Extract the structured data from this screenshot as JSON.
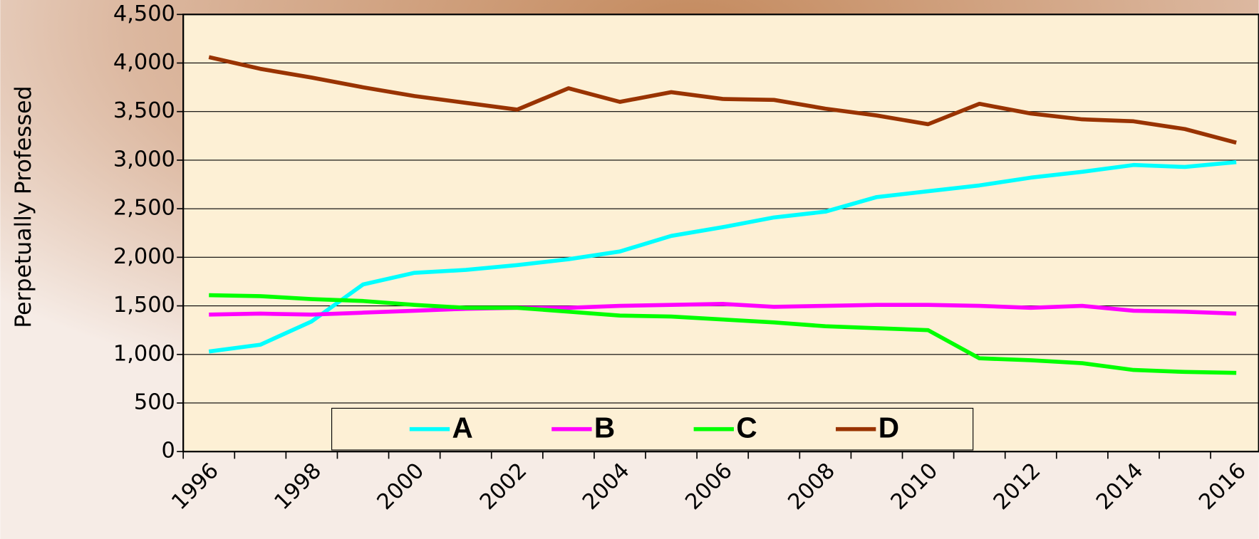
{
  "chart_data": {
    "type": "line",
    "y_label": "Perpetually Professed",
    "categories": [
      "1996",
      null,
      "1998",
      null,
      "2000",
      null,
      "2002",
      null,
      "2004",
      null,
      "2006",
      null,
      "2008",
      null,
      "2010",
      null,
      "2012",
      null,
      "2014",
      null,
      "2016"
    ],
    "series": [
      {
        "name": "A",
        "color": "#00ffff",
        "values": [
          1030,
          1100,
          1340,
          1720,
          1840,
          1870,
          1920,
          1980,
          2060,
          2220,
          2310,
          2410,
          2470,
          2620,
          2680,
          2740,
          2820,
          2880,
          2950,
          2930,
          2980
        ]
      },
      {
        "name": "B",
        "color": "#ff00ff",
        "values": [
          1410,
          1420,
          1410,
          1430,
          1450,
          1470,
          1480,
          1480,
          1500,
          1510,
          1520,
          1490,
          1500,
          1510,
          1510,
          1500,
          1480,
          1500,
          1450,
          1440,
          1420
        ]
      },
      {
        "name": "C",
        "color": "#00ff00",
        "values": [
          1610,
          1600,
          1570,
          1550,
          1510,
          1480,
          1480,
          1440,
          1400,
          1390,
          1360,
          1330,
          1290,
          1270,
          1250,
          960,
          940,
          910,
          840,
          820,
          810
        ]
      },
      {
        "name": "D",
        "color": "#993300",
        "values": [
          4060,
          3940,
          3850,
          3750,
          3660,
          3590,
          3520,
          3740,
          3600,
          3700,
          3630,
          3620,
          3530,
          3460,
          3370,
          3580,
          3480,
          3420,
          3400,
          3320,
          3180
        ]
      }
    ],
    "ylim": [
      0,
      4500
    ],
    "yticks": [
      0,
      500,
      {
        "value": 1000,
        "label": "1,000"
      },
      {
        "value": 1500,
        "label": "1,500"
      },
      {
        "value": 2000,
        "label": "2,000"
      },
      {
        "value": 2500,
        "label": "2,500"
      },
      {
        "value": 3000,
        "label": "3,000"
      },
      {
        "value": 3500,
        "label": "3,500"
      },
      {
        "value": 4000,
        "label": "4,000"
      },
      {
        "value": 4500,
        "label": "4,500"
      }
    ],
    "grid": true,
    "legend": "bottom"
  }
}
